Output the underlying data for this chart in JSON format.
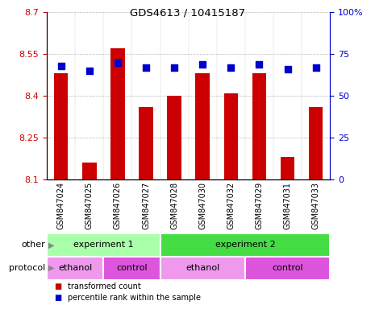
{
  "title": "GDS4613 / 10415187",
  "samples": [
    "GSM847024",
    "GSM847025",
    "GSM847026",
    "GSM847027",
    "GSM847028",
    "GSM847030",
    "GSM847032",
    "GSM847029",
    "GSM847031",
    "GSM847033"
  ],
  "bar_values": [
    8.48,
    8.16,
    8.57,
    8.36,
    8.4,
    8.48,
    8.41,
    8.48,
    8.18,
    8.36
  ],
  "bar_base": 8.1,
  "percentile_values": [
    68,
    65,
    70,
    67,
    67,
    69,
    67,
    69,
    66,
    67
  ],
  "ylim_left": [
    8.1,
    8.7
  ],
  "ylim_right": [
    0,
    100
  ],
  "yticks_left": [
    8.1,
    8.25,
    8.4,
    8.55,
    8.7
  ],
  "yticks_right": [
    0,
    25,
    50,
    75,
    100
  ],
  "bar_color": "#cc0000",
  "dot_color": "#0000cc",
  "bar_width": 0.5,
  "dot_size": 40,
  "other_groups": [
    {
      "label": "experiment 1",
      "start": 0,
      "end": 4,
      "color": "#aaffaa"
    },
    {
      "label": "experiment 2",
      "start": 4,
      "end": 10,
      "color": "#44dd44"
    }
  ],
  "protocol_groups": [
    {
      "label": "ethanol",
      "start": 0,
      "end": 2,
      "color": "#ee99ee"
    },
    {
      "label": "control",
      "start": 2,
      "end": 4,
      "color": "#dd55dd"
    },
    {
      "label": "ethanol",
      "start": 4,
      "end": 7,
      "color": "#ee99ee"
    },
    {
      "label": "control",
      "start": 7,
      "end": 10,
      "color": "#dd55dd"
    }
  ],
  "legend_items": [
    {
      "label": "transformed count",
      "color": "#cc0000"
    },
    {
      "label": "percentile rank within the sample",
      "color": "#0000cc"
    }
  ],
  "other_label": "other",
  "protocol_label": "protocol",
  "tick_color_left": "#cc0000",
  "tick_color_right": "#0000cc",
  "bg_color": "#d0d0d0",
  "spine_color": "#000000"
}
